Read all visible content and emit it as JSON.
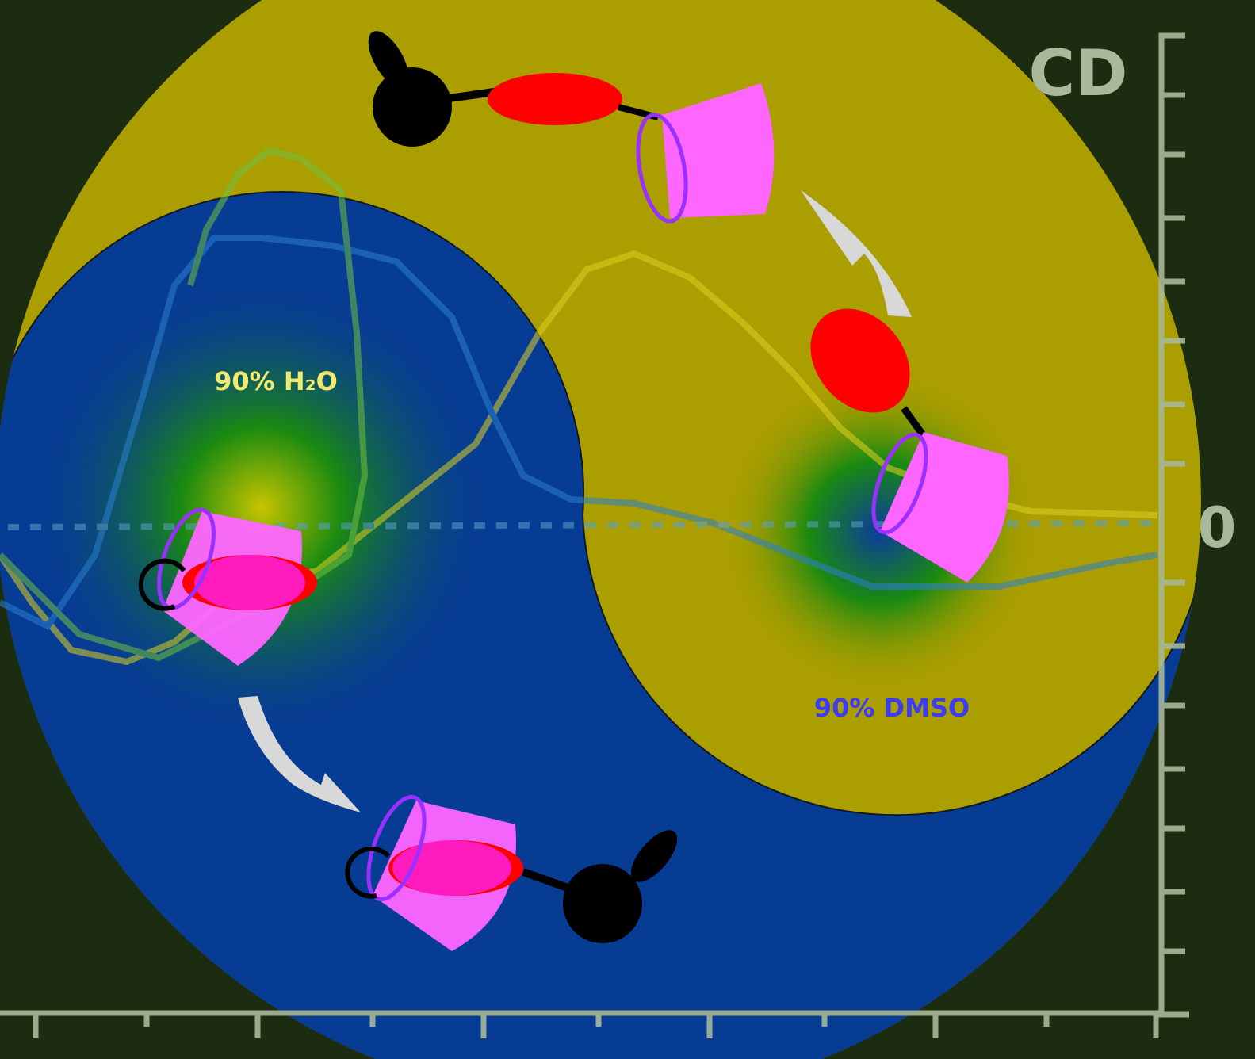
{
  "labels": {
    "axis": "CD",
    "zero": "0",
    "water": "90% H₂O",
    "dmso": "90% DMSO"
  }
}
